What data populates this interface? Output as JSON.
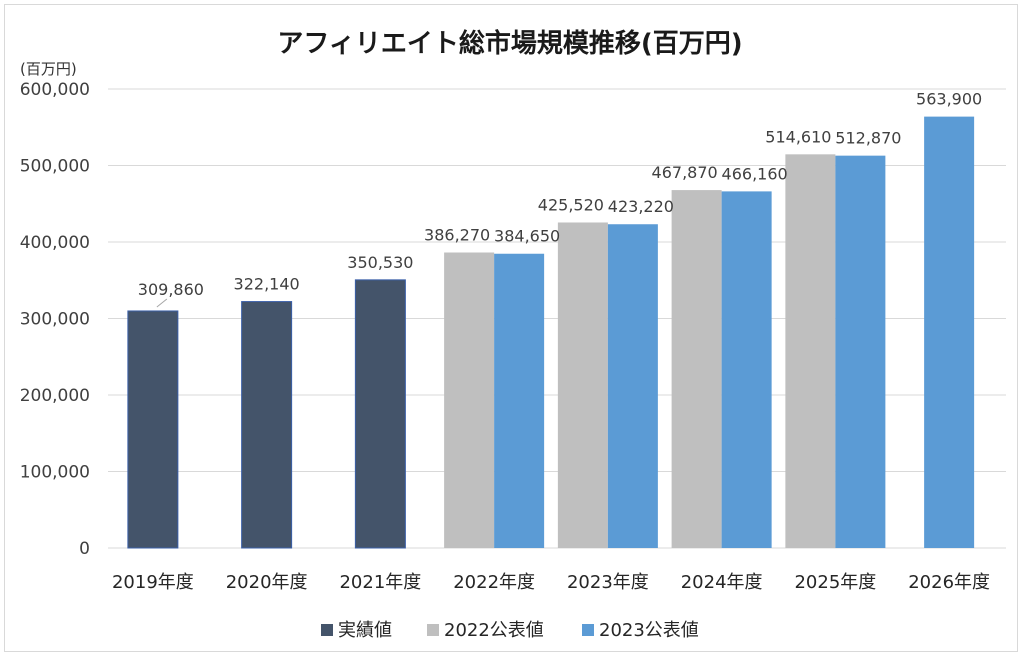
{
  "chart_data": {
    "type": "bar",
    "title": "アフィリエイト総市場規模推移(百万円)",
    "ylabel": "(百万円)",
    "xlabel": "",
    "ylim": [
      0,
      600000
    ],
    "yticks": [
      "0",
      "100,000",
      "200,000",
      "300,000",
      "400,000",
      "500,000",
      "600,000"
    ],
    "ytick_values": [
      0,
      100000,
      200000,
      300000,
      400000,
      500000,
      600000
    ],
    "categories": [
      "2019年度",
      "2020年度",
      "2021年度",
      "2022年度",
      "2023年度",
      "2024年度",
      "2025年度",
      "2026年度"
    ],
    "series": [
      {
        "name": "実績値",
        "color": "#44546a",
        "values": [
          309860,
          322140,
          350530,
          null,
          null,
          null,
          null,
          null
        ],
        "labels": [
          "309,860",
          "322,140",
          "350,530",
          null,
          null,
          null,
          null,
          null
        ]
      },
      {
        "name": "2022公表値",
        "color": "#bfbfbf",
        "values": [
          null,
          null,
          null,
          386270,
          425520,
          467870,
          514610,
          null
        ],
        "labels": [
          null,
          null,
          null,
          "386,270",
          "425,520",
          "467,870",
          "514,610",
          null
        ]
      },
      {
        "name": "2023公表値",
        "color": "#5b9bd5",
        "values": [
          null,
          null,
          null,
          384650,
          423220,
          466160,
          512870,
          563900
        ],
        "labels": [
          null,
          null,
          null,
          "384,650",
          "423,220",
          "466,160",
          "512,870",
          "563,900"
        ]
      }
    ],
    "legend_position": "bottom",
    "grid": true
  }
}
